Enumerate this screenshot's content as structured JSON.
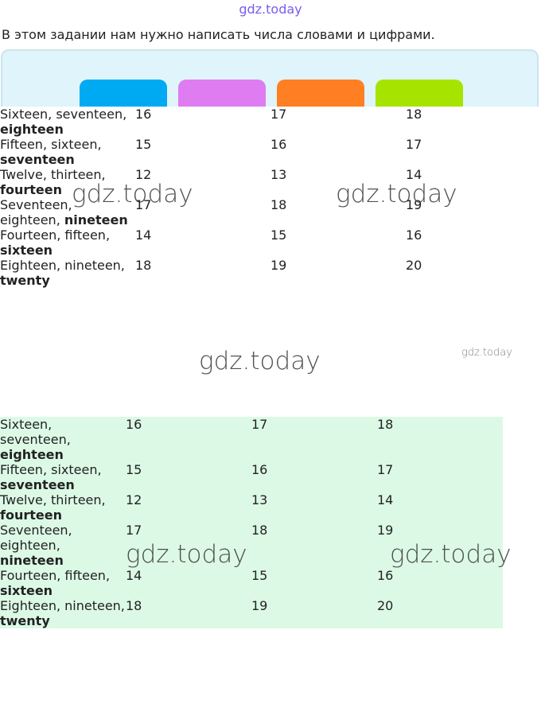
{
  "header": {
    "watermark": "gdz.today",
    "intro": "В этом задании нам нужно написать числа словами и цифрами."
  },
  "table_1": {
    "rows": [
      [
        {
          "text": "Sixteen, seventeen,",
          "bold": "eighteen"
        },
        "16",
        "17",
        "18"
      ],
      [
        {
          "text": "Fifteen, sixteen,",
          "bold": "seventeen"
        },
        "15",
        "16",
        "17"
      ],
      [
        {
          "text": "Twelve, thirteen,",
          "bold": "fourteen"
        },
        "12",
        "13",
        "14"
      ],
      [
        {
          "text": "Seventeen, eighteen,",
          "bold": "nineteen"
        },
        "17",
        "18",
        "19"
      ],
      [
        {
          "text": "Fourteen, fifteen,",
          "bold": "sixteen"
        },
        "14",
        "15",
        "16"
      ],
      [
        {
          "text": "Eighteen, nineteen,",
          "bold": "twenty"
        },
        "18",
        "19",
        "20"
      ]
    ]
  },
  "table_2": {
    "rows": [
      [
        {
          "text": "Sixteen, seventeen,",
          "bold": "eighteen"
        },
        "16",
        "17",
        "18"
      ],
      [
        {
          "text": "Fifteen, sixteen,",
          "bold": "seventeen"
        },
        "15",
        "16",
        "17"
      ],
      [
        {
          "text": "Twelve, thirteen,",
          "bold": "fourteen"
        },
        "12",
        "13",
        "14"
      ],
      [
        {
          "text": "Seventeen, eighteen,",
          "bold": "nineteen"
        },
        "17",
        "18",
        "19"
      ],
      [
        {
          "text": "Fourteen, fifteen,",
          "bold": "sixteen"
        },
        "14",
        "15",
        "16"
      ],
      [
        {
          "text": "Eighteen, nineteen,",
          "bold": "twenty"
        },
        "18",
        "19",
        "20"
      ]
    ]
  },
  "watermarks": [
    "gdz.today",
    "gdz.today",
    "gdz.today",
    "gdz.today",
    "gdz.today",
    "gdz.today"
  ]
}
